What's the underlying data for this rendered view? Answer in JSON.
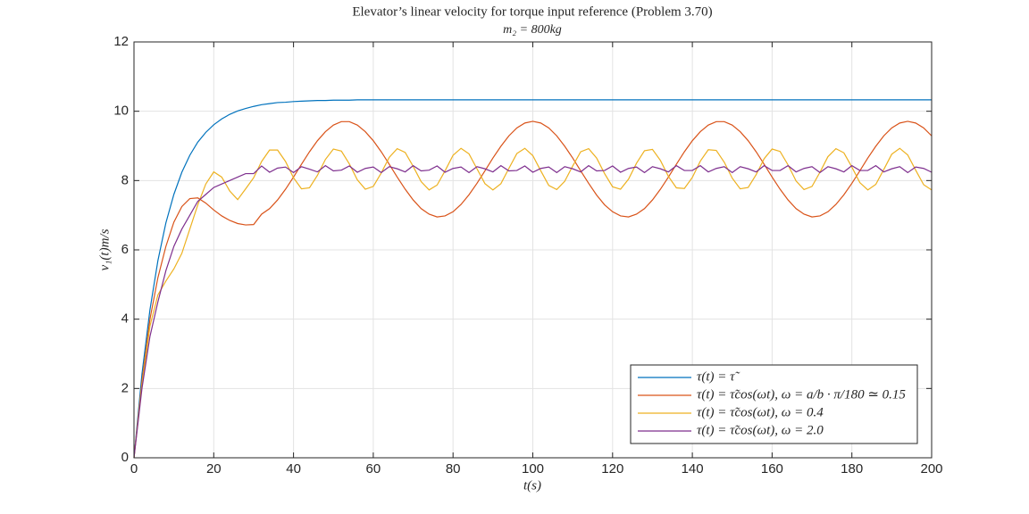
{
  "chart_data": {
    "type": "line",
    "title": "Elevator’s linear velocity for torque input reference (Problem 3.70)",
    "subtitle": "m₂ = 800kg",
    "xlabel": "t(s)",
    "ylabel": "v₁(t)m/s",
    "xlim": [
      0,
      200
    ],
    "ylim": [
      0,
      12
    ],
    "xticks": [
      0,
      20,
      40,
      60,
      80,
      100,
      120,
      140,
      160,
      180,
      200
    ],
    "yticks": [
      0,
      2,
      4,
      6,
      8,
      10,
      12
    ],
    "grid": true,
    "legend": "lower right",
    "x": [
      0,
      2,
      4,
      6,
      8,
      10,
      12,
      14,
      16,
      18,
      20,
      22,
      24,
      26,
      28,
      30,
      32,
      34,
      36,
      38,
      40,
      42,
      44,
      46,
      48,
      50,
      52,
      54,
      56,
      58,
      60,
      62,
      64,
      66,
      68,
      70,
      72,
      74,
      76,
      78,
      80,
      82,
      84,
      86,
      88,
      90,
      92,
      94,
      96,
      98,
      100,
      102,
      104,
      106,
      108,
      110,
      112,
      114,
      116,
      118,
      120,
      122,
      124,
      126,
      128,
      130,
      132,
      134,
      136,
      138,
      140,
      142,
      144,
      146,
      148,
      150,
      152,
      154,
      156,
      158,
      160,
      162,
      164,
      166,
      168,
      170,
      172,
      174,
      176,
      178,
      180,
      182,
      184,
      186,
      188,
      190,
      192,
      194,
      196,
      198,
      200
    ],
    "series": [
      {
        "name": "τ(t) = τ̃",
        "color": "#0072BD",
        "values": [
          0,
          2.42,
          4.27,
          5.69,
          6.78,
          7.6,
          8.24,
          8.73,
          9.11,
          9.39,
          9.61,
          9.78,
          9.91,
          10.01,
          10.08,
          10.14,
          10.19,
          10.22,
          10.25,
          10.26,
          10.28,
          10.29,
          10.3,
          10.31,
          10.31,
          10.32,
          10.32,
          10.32,
          10.33,
          10.33,
          10.33,
          10.33,
          10.33,
          10.33,
          10.33,
          10.33,
          10.33,
          10.33,
          10.33,
          10.33,
          10.33,
          10.33,
          10.33,
          10.33,
          10.33,
          10.33,
          10.33,
          10.33,
          10.33,
          10.33,
          10.33,
          10.33,
          10.33,
          10.33,
          10.33,
          10.33,
          10.33,
          10.33,
          10.33,
          10.33,
          10.33,
          10.33,
          10.33,
          10.33,
          10.33,
          10.33,
          10.33,
          10.33,
          10.33,
          10.33,
          10.33,
          10.33,
          10.33,
          10.33,
          10.33,
          10.33,
          10.33,
          10.33,
          10.33,
          10.33,
          10.33,
          10.33,
          10.33,
          10.33,
          10.33,
          10.33,
          10.33,
          10.33,
          10.33,
          10.33,
          10.33,
          10.33,
          10.33,
          10.33,
          10.33,
          10.33,
          10.33,
          10.33,
          10.33,
          10.33,
          10.33
        ]
      },
      {
        "name": "τ(t) = τ̃cos(ωt), ω = a/b · π/180 ≃ 0.15",
        "color": "#D95319",
        "values": [
          0,
          2.2,
          4.0,
          5.2,
          6.1,
          6.8,
          7.25,
          7.48,
          7.5,
          7.35,
          7.15,
          6.98,
          6.85,
          6.76,
          6.72,
          6.73,
          7.03,
          7.19,
          7.44,
          7.75,
          8.1,
          8.47,
          8.83,
          9.15,
          9.41,
          9.6,
          9.7,
          9.7,
          9.6,
          9.41,
          9.15,
          8.83,
          8.47,
          8.1,
          7.75,
          7.44,
          7.19,
          7.03,
          6.95,
          6.98,
          7.1,
          7.31,
          7.59,
          7.92,
          8.28,
          8.65,
          8.99,
          9.29,
          9.52,
          9.66,
          9.71,
          9.66,
          9.52,
          9.29,
          8.99,
          8.65,
          8.28,
          7.92,
          7.58,
          7.3,
          7.1,
          6.98,
          6.95,
          7.03,
          7.19,
          7.44,
          7.75,
          8.1,
          8.47,
          8.83,
          9.15,
          9.41,
          9.6,
          9.7,
          9.7,
          9.6,
          9.41,
          9.15,
          8.83,
          8.47,
          8.1,
          7.75,
          7.44,
          7.19,
          7.03,
          6.95,
          6.98,
          7.1,
          7.31,
          7.59,
          7.92,
          8.28,
          8.65,
          8.99,
          9.29,
          9.52,
          9.66,
          9.71,
          9.66,
          9.52,
          9.29
        ]
      },
      {
        "name": "τ(t) = τ̃cos(ωt), ω = 0.4",
        "color": "#EDB120",
        "values": [
          0,
          2.1,
          3.8,
          4.7,
          5.1,
          5.45,
          5.9,
          6.6,
          7.3,
          7.9,
          8.25,
          8.1,
          7.7,
          7.45,
          7.76,
          8.08,
          8.55,
          8.88,
          8.88,
          8.55,
          8.08,
          7.76,
          7.79,
          8.15,
          8.61,
          8.91,
          8.85,
          8.48,
          8.02,
          7.75,
          7.83,
          8.22,
          8.67,
          8.92,
          8.81,
          8.41,
          7.97,
          7.73,
          7.87,
          8.28,
          8.73,
          8.93,
          8.77,
          8.34,
          7.91,
          7.73,
          7.91,
          8.35,
          8.78,
          8.93,
          8.72,
          8.28,
          7.86,
          7.74,
          7.98,
          8.42,
          8.83,
          8.92,
          8.65,
          8.2,
          7.82,
          7.75,
          8.04,
          8.5,
          8.86,
          8.9,
          8.58,
          8.12,
          7.79,
          7.77,
          8.09,
          8.56,
          8.89,
          8.87,
          8.53,
          8.07,
          7.76,
          7.8,
          8.17,
          8.63,
          8.91,
          8.84,
          8.45,
          7.99,
          7.74,
          7.83,
          8.24,
          8.69,
          8.92,
          8.8,
          8.39,
          7.94,
          7.73,
          7.89,
          8.32,
          8.76,
          8.93,
          8.74,
          8.3,
          7.88,
          7.73
        ]
      },
      {
        "name": "τ(t) = τ̃cos(ωt), ω = 2.0",
        "color": "#7E2F8E",
        "values": [
          0,
          2.0,
          3.5,
          4.5,
          5.4,
          6.1,
          6.6,
          7.0,
          7.4,
          7.6,
          7.8,
          7.9,
          8.0,
          8.1,
          8.2,
          8.2,
          8.42,
          8.24,
          8.36,
          8.39,
          8.23,
          8.4,
          8.33,
          8.25,
          8.43,
          8.28,
          8.3,
          8.42,
          8.24,
          8.35,
          8.39,
          8.23,
          8.4,
          8.34,
          8.25,
          8.43,
          8.28,
          8.3,
          8.42,
          8.24,
          8.35,
          8.39,
          8.23,
          8.4,
          8.34,
          8.25,
          8.43,
          8.28,
          8.29,
          8.42,
          8.24,
          8.35,
          8.39,
          8.23,
          8.4,
          8.34,
          8.25,
          8.43,
          8.28,
          8.29,
          8.42,
          8.24,
          8.35,
          8.39,
          8.23,
          8.4,
          8.34,
          8.25,
          8.43,
          8.29,
          8.29,
          8.43,
          8.25,
          8.35,
          8.4,
          8.23,
          8.4,
          8.34,
          8.25,
          8.43,
          8.29,
          8.29,
          8.43,
          8.25,
          8.35,
          8.4,
          8.23,
          8.4,
          8.34,
          8.25,
          8.43,
          8.29,
          8.29,
          8.43,
          8.25,
          8.34,
          8.4,
          8.23,
          8.39,
          8.35,
          8.24
        ]
      }
    ]
  }
}
